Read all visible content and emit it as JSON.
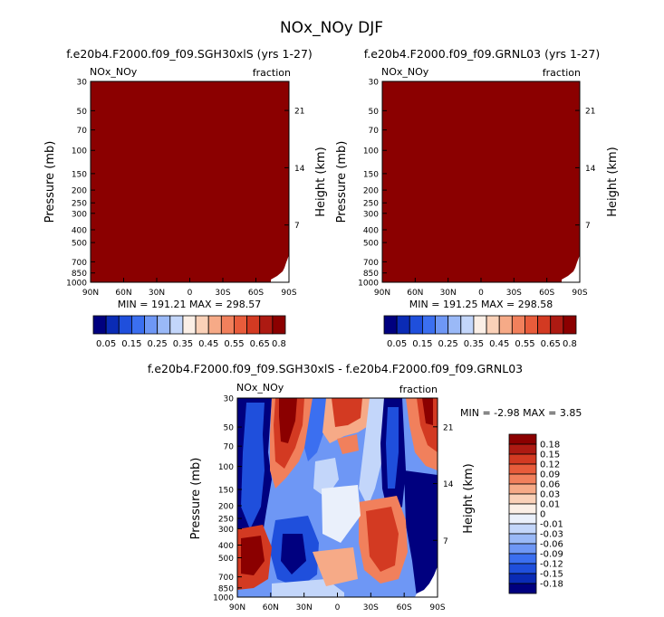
{
  "page_title": "NOx_NOy DJF",
  "panels": [
    {
      "title": "f.e20b4.F2000.f09_f09.SGH30xlS (yrs 1-27)",
      "var_label": "NOx_NOy",
      "units_label": "fraction",
      "stats": "MIN = 191.21    MAX = 298.57",
      "fill_color": "#8b0000"
    },
    {
      "title": "f.e20b4.F2000.f09_f09.GRNL03 (yrs 1-27)",
      "var_label": "NOx_NOy",
      "units_label": "fraction",
      "stats": "MIN = 191.25    MAX = 298.58",
      "fill_color": "#8b0000"
    },
    {
      "title": "f.e20b4.F2000.f09_f09.SGH30xlS - f.e20b4.F2000.f09_f09.GRNL03",
      "var_label": "NOx_NOy",
      "units_label": "fraction",
      "stats": "MIN =  -2.98   MAX =   3.85"
    }
  ],
  "axis_labels": {
    "pressure": "Pressure (mb)",
    "height": "Height (km)"
  },
  "chart_data": [
    {
      "type": "heatmap",
      "title": "f.e20b4.F2000.f09_f09.SGH30xlS (yrs 1-27)",
      "xlabel": "",
      "ylabel": "Pressure (mb)",
      "y2label": "Height (km)",
      "x_ticks": [
        "90N",
        "60N",
        "30N",
        "0",
        "30S",
        "60S",
        "90S"
      ],
      "y_ticks": [
        30,
        50,
        70,
        100,
        150,
        200,
        250,
        300,
        400,
        500,
        700,
        850,
        1000
      ],
      "y2_ticks": [
        21,
        14,
        7
      ],
      "ylim": [
        1000,
        30
      ],
      "min": 191.21,
      "max": 298.57,
      "field": "uniform maximum (above 0.8) everywhere, small missing region near 90S surface"
    },
    {
      "type": "heatmap",
      "title": "f.e20b4.F2000.f09_f09.GRNL03 (yrs 1-27)",
      "xlabel": "",
      "ylabel": "Pressure (mb)",
      "y2label": "Height (km)",
      "x_ticks": [
        "90N",
        "60N",
        "30N",
        "0",
        "30S",
        "60S",
        "90S"
      ],
      "y_ticks": [
        30,
        50,
        70,
        100,
        150,
        200,
        250,
        300,
        400,
        500,
        700,
        850,
        1000
      ],
      "y2_ticks": [
        21,
        14,
        7
      ],
      "ylim": [
        1000,
        30
      ],
      "min": 191.25,
      "max": 298.58,
      "field": "uniform maximum (above 0.8) everywhere, small missing region near 90S surface"
    },
    {
      "type": "heatmap",
      "title": "f.e20b4.F2000.f09_f09.SGH30xlS - f.e20b4.F2000.f09_f09.GRNL03",
      "ylabel": "Pressure (mb)",
      "y2label": "Height (km)",
      "x_ticks": [
        "90N",
        "60N",
        "30N",
        "0",
        "30S",
        "60S",
        "90S"
      ],
      "y_ticks": [
        30,
        50,
        70,
        100,
        150,
        200,
        250,
        300,
        400,
        500,
        700,
        850,
        1000
      ],
      "y2_ticks": [
        21,
        14,
        7
      ],
      "ylim": [
        1000,
        30
      ],
      "min": -2.98,
      "max": 3.85
    }
  ],
  "colorbar_top": {
    "labels": [
      "0.05",
      "0.15",
      "0.25",
      "0.35",
      "0.45",
      "0.55",
      "0.65",
      "0.8"
    ],
    "colors": [
      "#00007f",
      "#0a2bb5",
      "#1f4fdc",
      "#3b6ff0",
      "#6e97f5",
      "#9ab9f7",
      "#c3d6fa",
      "#fbefe6",
      "#fad1b8",
      "#f6aa87",
      "#f1805c",
      "#e85c3b",
      "#d33a22",
      "#ad1a12",
      "#8b0000"
    ]
  },
  "colorbar_diff": {
    "labels": [
      "0.18",
      "0.15",
      "0.12",
      "0.09",
      "0.06",
      "0.03",
      "0.01",
      "0",
      "-0.01",
      "-0.03",
      "-0.06",
      "-0.09",
      "-0.12",
      "-0.15",
      "-0.18"
    ],
    "colors": [
      "#8b0000",
      "#ad1a12",
      "#d33a22",
      "#e85c3b",
      "#f1805c",
      "#f6aa87",
      "#fad1b8",
      "#fbefe6",
      "#eaf0fb",
      "#c3d6fa",
      "#9ab9f7",
      "#6e97f5",
      "#3b6ff0",
      "#1f4fdc",
      "#0a2bb5",
      "#00007f"
    ]
  }
}
